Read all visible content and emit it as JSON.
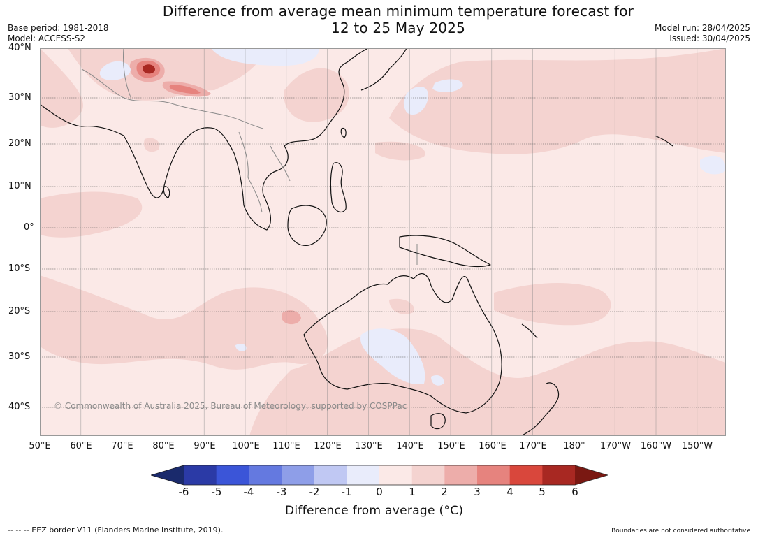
{
  "title": {
    "line1": "Difference from average mean minimum temperature forecast for",
    "line2": "12 to 25 May 2025"
  },
  "meta": {
    "base_period": "Base period: 1981-2018",
    "model": "Model: ACCESS-S2",
    "model_run": "Model run: 28/04/2025",
    "issued": "Issued: 30/04/2025"
  },
  "map": {
    "extent": {
      "lon": [
        50,
        217
      ],
      "lat": [
        -46,
        40
      ]
    },
    "latitude_labels": [
      "40°N",
      "30°N",
      "20°N",
      "10°N",
      "0°",
      "10°S",
      "20°S",
      "30°S",
      "40°S"
    ],
    "longitude_labels": [
      "50°E",
      "60°E",
      "70°E",
      "80°E",
      "90°E",
      "100°E",
      "110°E",
      "120°E",
      "130°E",
      "140°E",
      "150°E",
      "160°E",
      "170°E",
      "180°",
      "170°W",
      "160°W",
      "150°W"
    ],
    "credit": "© Commonwealth of Australia 2025, Bureau of Meteorology, supported by COSPPac"
  },
  "colorbar": {
    "ticks": [
      "-6",
      "-5",
      "-4",
      "-3",
      "-2",
      "-1",
      "0",
      "1",
      "2",
      "3",
      "4",
      "5",
      "6"
    ],
    "colors": {
      "below": "#1a2a6c",
      "bins": [
        "#2b3aa6",
        "#3b55d8",
        "#6479e0",
        "#8e9ee8",
        "#c0c8f3",
        "#e9ecfb",
        "#fbe9e7",
        "#f4d3d0",
        "#edadaa",
        "#e6837e",
        "#d9473c",
        "#a82822"
      ],
      "above": "#7a1812"
    },
    "label": "Difference from average (°C)"
  },
  "footer": {
    "eez_note": "--  --  -- EEZ border V11 (Flanders Marine Institute, 2019).",
    "boundary_note": "Boundaries are not considered authoritative"
  }
}
